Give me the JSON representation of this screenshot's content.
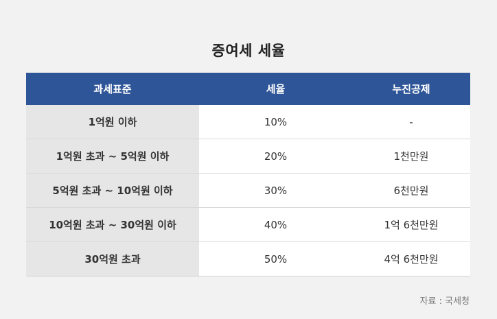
{
  "title": "증여세 세율",
  "table": {
    "headers": [
      "과세표준",
      "세율",
      "누진공제"
    ],
    "rows": [
      [
        "1억원 이하",
        "10%",
        "-"
      ],
      [
        "1억원 초과 ~ 5억원 이하",
        "20%",
        "1천만원"
      ],
      [
        "5억원 초과 ~ 10억원 이하",
        "30%",
        "6천만원"
      ],
      [
        "10억원 초과 ~ 30억원 이하",
        "40%",
        "1억 6천만원"
      ],
      [
        "30억원 초과",
        "50%",
        "4억 6천만원"
      ]
    ]
  },
  "source": "자료 : 국세청",
  "colors": {
    "header_bg": "#2e5597",
    "base_col_bg": "#e6e6e6",
    "page_bg": "#f2f2f2"
  }
}
